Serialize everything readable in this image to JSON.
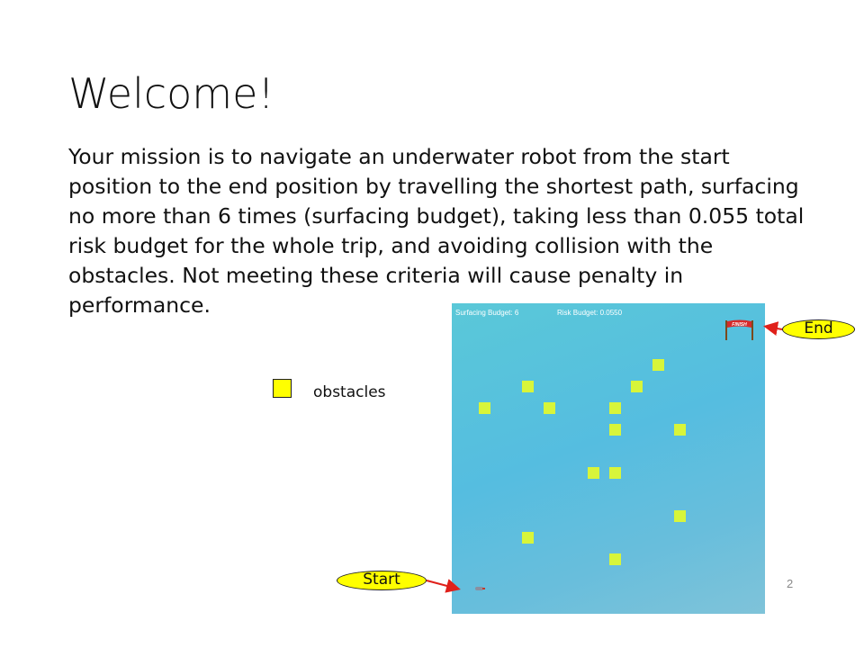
{
  "slide": {
    "title": "Welcome!",
    "body": "Your mission is to navigate an underwater robot from the start position to the end position by travelling the shortest path, surfacing no more than 6 times (surfacing budget), taking less than 0.055 total risk budget for the whole trip, and avoiding collision with the obstacles. Not meeting these criteria will cause penalty in performance.",
    "page_number": "2"
  },
  "legend": {
    "label": "obstacles",
    "swatch_color": "#ffff00"
  },
  "game": {
    "surfacing_budget": "Surfacing Budget: 6",
    "risk_budget": "Risk Budget: 0.0550",
    "finish_label": "FINISH",
    "water_color": "#55bde0",
    "obstacle_color": "#d8f53a",
    "obstacle_count": 15
  },
  "callouts": {
    "end": "End",
    "start": "Start",
    "pill_color": "#ffff00",
    "arrow_color": "#e0201a"
  }
}
